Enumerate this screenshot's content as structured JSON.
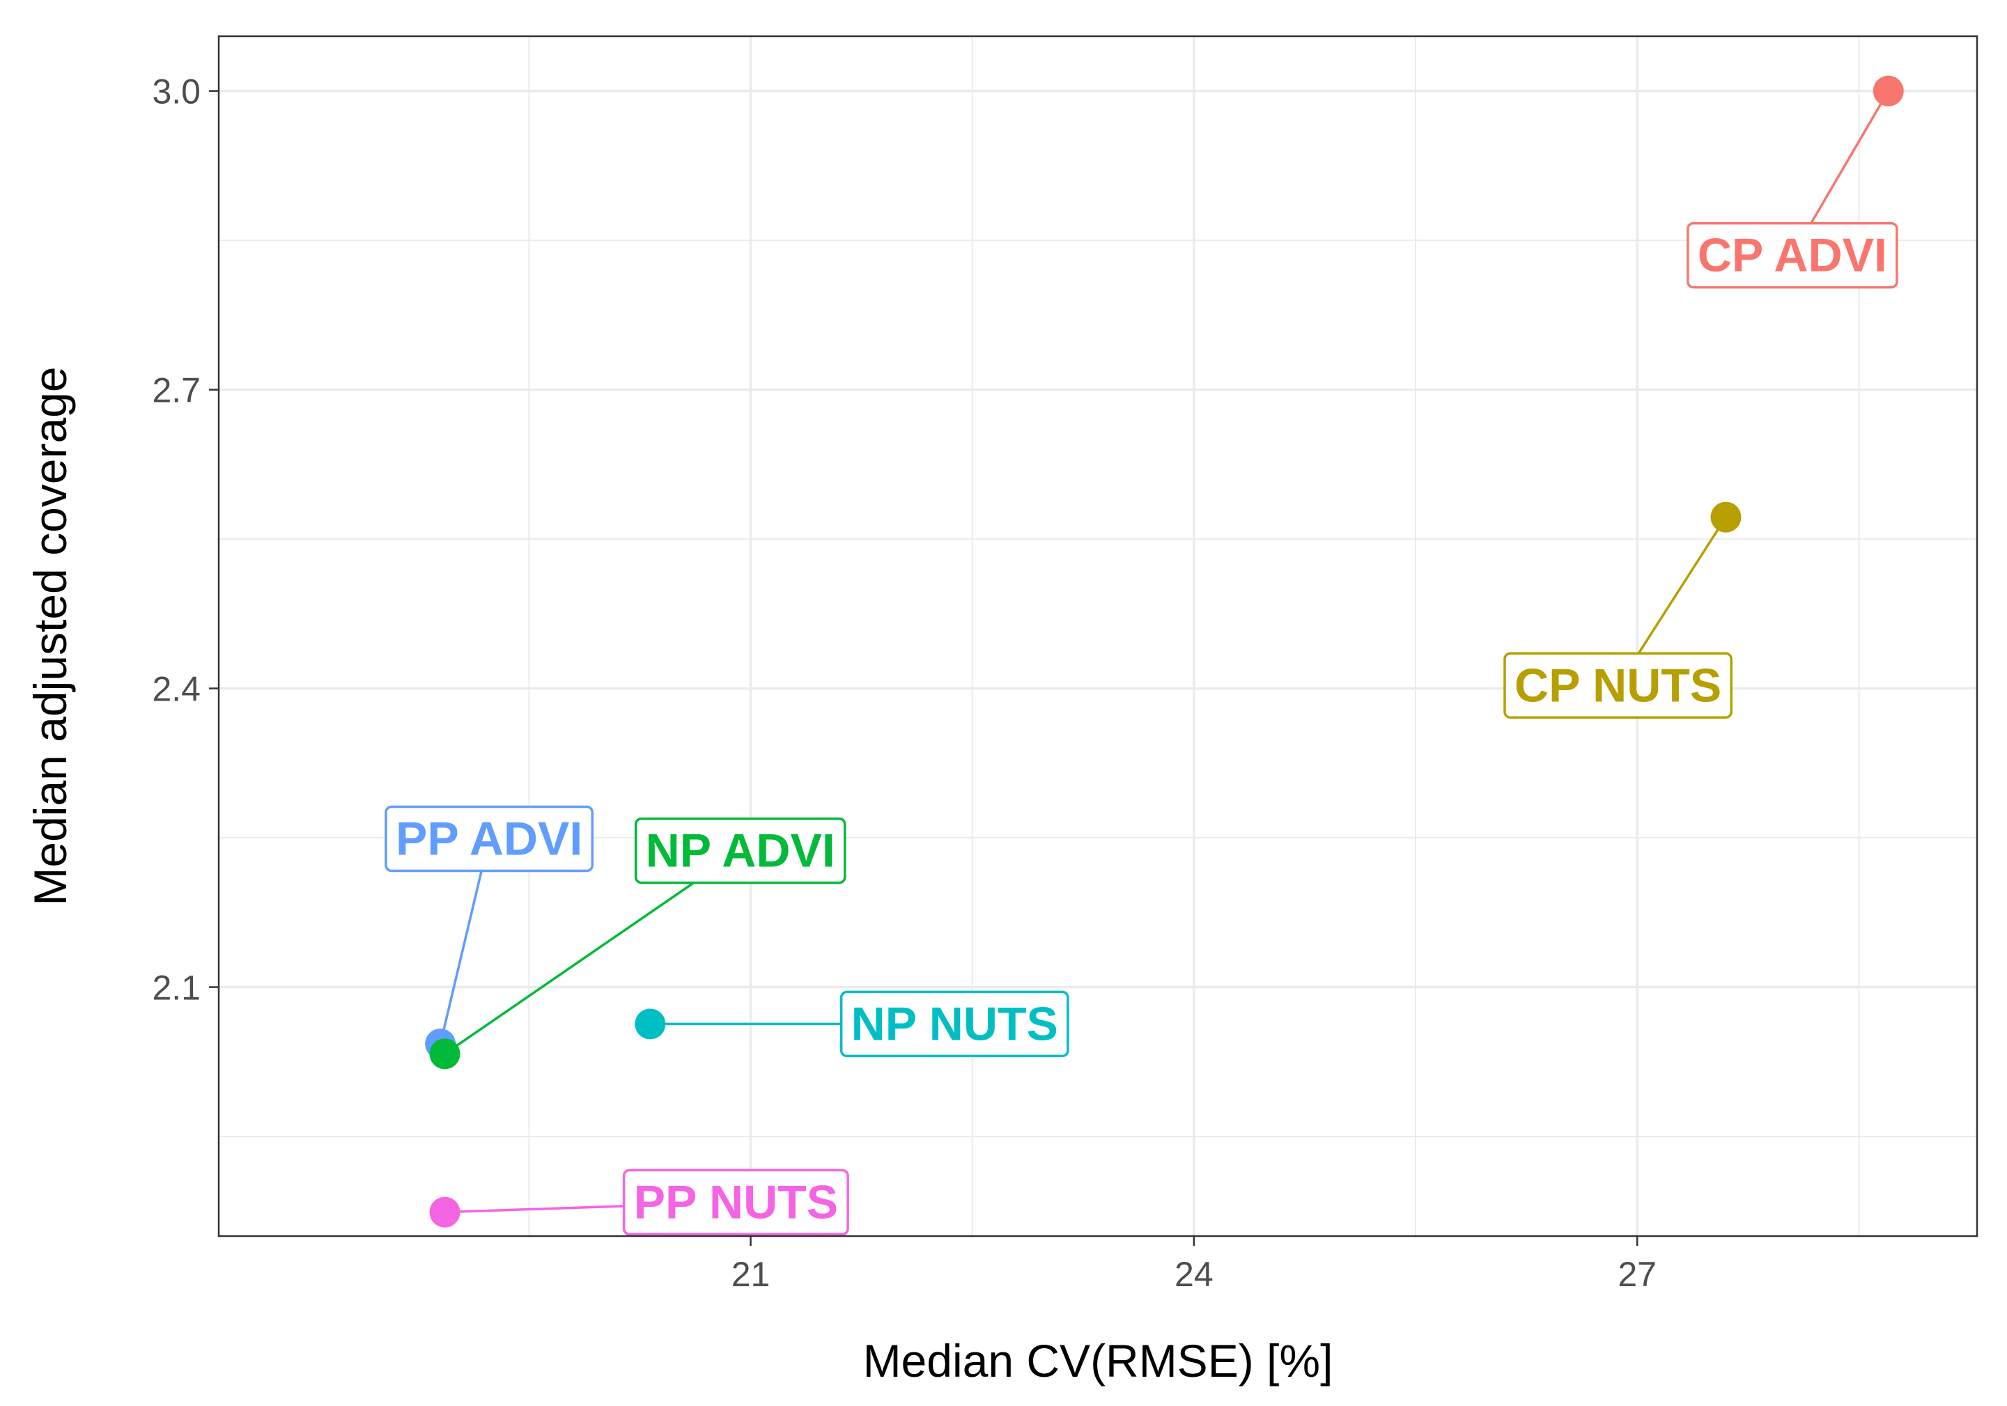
{
  "chart_data": {
    "type": "scatter",
    "title": "",
    "xlabel": "Median CV(RMSE) [%]",
    "ylabel": "Median adjusted coverage",
    "xlim": [
      17.4,
      29.3
    ],
    "ylim": [
      1.85,
      3.055
    ],
    "x_ticks": [
      21,
      24,
      27
    ],
    "x_tick_labels": [
      "21",
      "24",
      "27"
    ],
    "x_minor_ticks": [
      19.5,
      22.5,
      25.5,
      28.5
    ],
    "y_ticks": [
      2.1,
      2.4,
      2.7,
      3.0
    ],
    "y_tick_labels": [
      "2.1",
      "2.4",
      "2.7",
      "3.0"
    ],
    "y_minor_ticks": [
      1.95,
      2.25,
      2.55,
      2.85
    ],
    "grid": true,
    "legend": "none",
    "points": [
      {
        "name": "CP ADVI",
        "x": 28.7,
        "y": 3.0,
        "color": "#F8766D",
        "label_x": 28.05,
        "label_y": 2.835
      },
      {
        "name": "CP NUTS",
        "x": 27.6,
        "y": 2.572,
        "color": "#B79F00",
        "label_x": 26.87,
        "label_y": 2.403
      },
      {
        "name": "PP ADVI",
        "x": 18.9,
        "y": 2.043,
        "color": "#619CFF",
        "label_x": 19.23,
        "label_y": 2.249
      },
      {
        "name": "NP ADVI",
        "x": 18.93,
        "y": 2.033,
        "color": "#00BA38",
        "label_x": 20.93,
        "label_y": 2.237
      },
      {
        "name": "NP NUTS",
        "x": 20.32,
        "y": 2.063,
        "color": "#00BFC4",
        "label_x": 22.38,
        "label_y": 2.063
      },
      {
        "name": "PP NUTS",
        "x": 18.93,
        "y": 1.874,
        "color": "#F564E3",
        "label_x": 20.9,
        "label_y": 1.884
      }
    ]
  }
}
